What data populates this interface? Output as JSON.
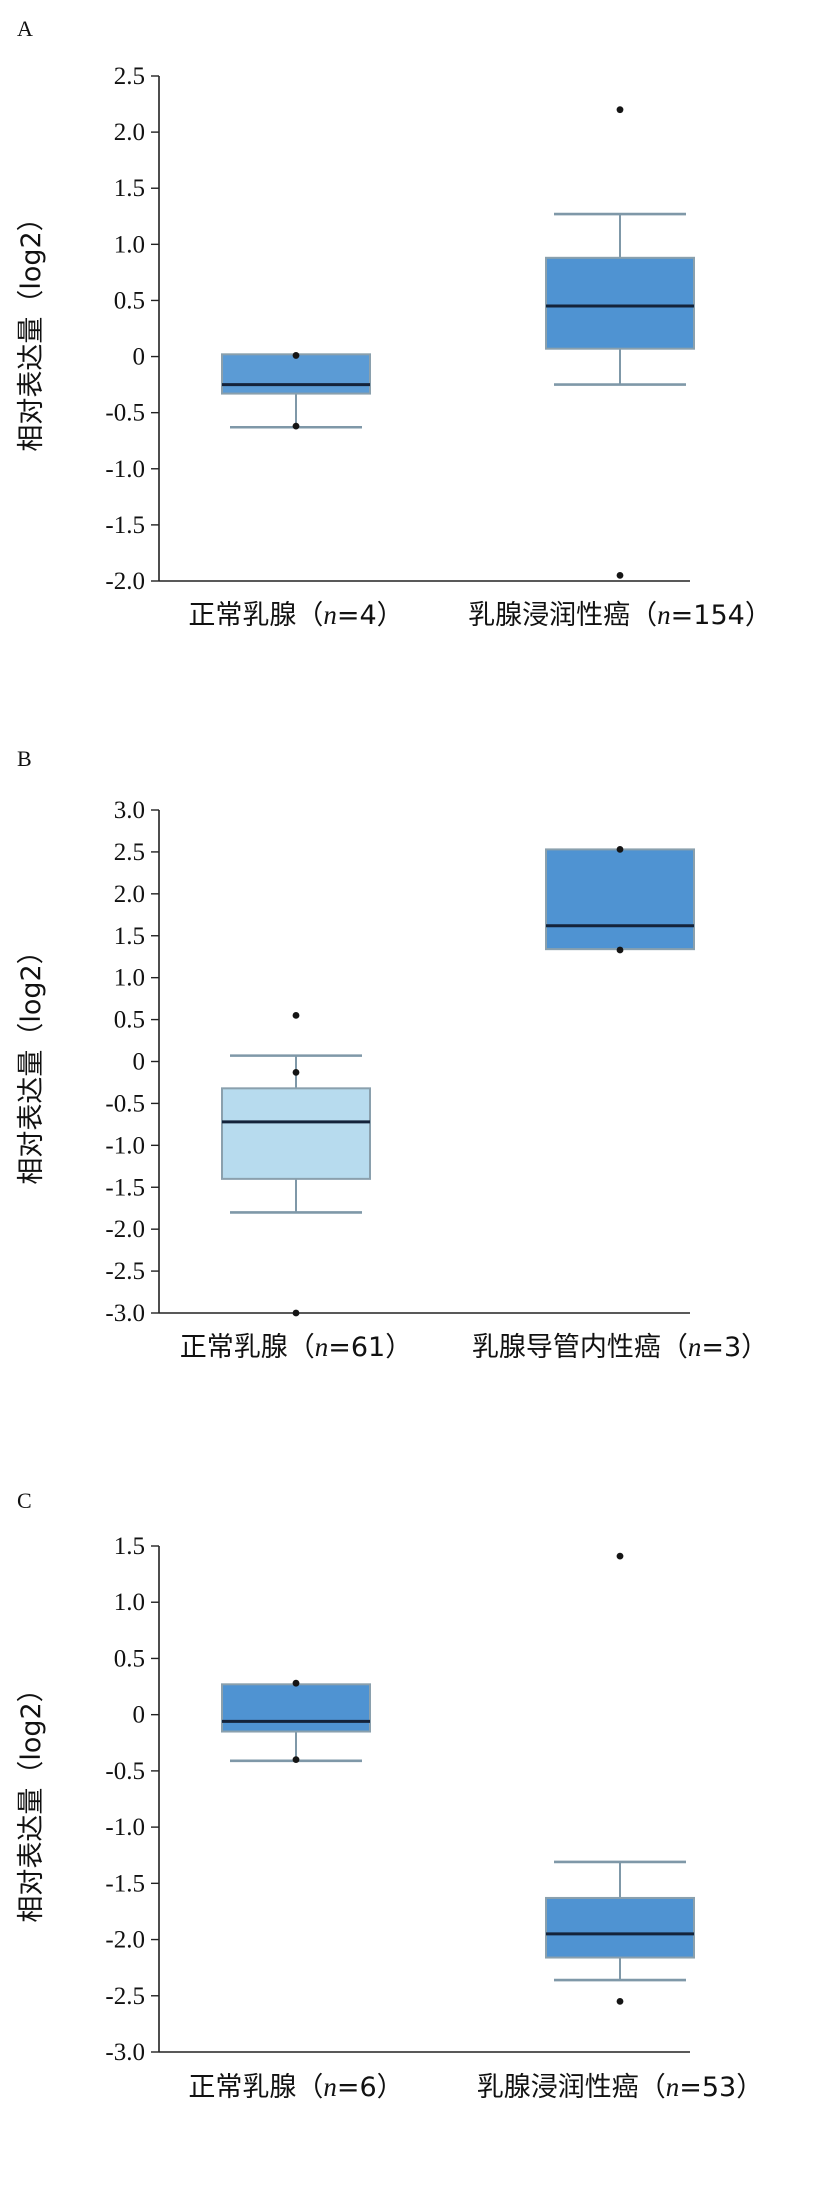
{
  "chart_data": [
    {
      "type": "box",
      "panel_label": "A",
      "ylabel": "相对表达量（log2）",
      "ylim": [
        -2.0,
        2.5
      ],
      "yticks": [
        2.5,
        2.0,
        1.5,
        1.0,
        0.5,
        0,
        -0.5,
        -1.0,
        -1.5,
        -2.0
      ],
      "ytick_labels": [
        "2.5",
        "2.0",
        "1.5",
        "1.0",
        "0.5",
        "0",
        "-0.5",
        "-1.0",
        "-1.5",
        "-2.0"
      ],
      "boxes": [
        {
          "label": "正常乳腺",
          "n_prefix": "（",
          "n_var": "n",
          "n_suffix": "=4）",
          "whisker_low": -0.63,
          "q1": -0.33,
          "median": -0.25,
          "q3": 0.02,
          "whisker_high": null,
          "outliers": [
            0.01,
            -0.62
          ],
          "color": "#5b9bd5"
        },
        {
          "label": "乳腺浸润性癌",
          "n_prefix": "（",
          "n_var": "n",
          "n_suffix": "=154）",
          "whisker_low": -0.25,
          "q1": 0.07,
          "median": 0.45,
          "q3": 0.88,
          "whisker_high": 1.27,
          "outliers": [
            2.2,
            -1.95
          ],
          "color": "#4f93d2"
        }
      ]
    },
    {
      "type": "box",
      "panel_label": "B",
      "ylabel": "相对表达量（log2）",
      "ylim": [
        -3.0,
        3.0
      ],
      "yticks": [
        3.0,
        2.5,
        2.0,
        1.5,
        1.0,
        0.5,
        0,
        -0.5,
        -1.0,
        -1.5,
        -2.0,
        -2.5,
        -3.0
      ],
      "ytick_labels": [
        "3.0",
        "2.5",
        "2.0",
        "1.5",
        "1.0",
        "0.5",
        "0",
        "-0.5",
        "-1.0",
        "-1.5",
        "-2.0",
        "-2.5",
        "-3.0"
      ],
      "boxes": [
        {
          "label": "正常乳腺",
          "n_prefix": "（",
          "n_var": "n",
          "n_suffix": "=61）",
          "whisker_low": -1.8,
          "q1": -1.4,
          "median": -0.72,
          "q3": -0.32,
          "whisker_high": 0.07,
          "outliers": [
            0.55,
            -0.13,
            -3.0
          ],
          "color": "#b7dbee"
        },
        {
          "label": "乳腺导管内性癌",
          "n_prefix": "（",
          "n_var": "n",
          "n_suffix": "=3）",
          "whisker_low": null,
          "q1": 1.34,
          "median": 1.62,
          "q3": 2.53,
          "whisker_high": null,
          "outliers": [
            2.53,
            1.33
          ],
          "color": "#4f93d2"
        }
      ]
    },
    {
      "type": "box",
      "panel_label": "C",
      "ylabel": "相对表达量（log2）",
      "ylim": [
        -3.0,
        1.5
      ],
      "yticks": [
        1.5,
        1.0,
        0.5,
        0,
        -0.5,
        -1.0,
        -1.5,
        -2.0,
        -2.5,
        -3.0
      ],
      "ytick_labels": [
        "1.5",
        "1.0",
        "0.5",
        "0",
        "-0.5",
        "-1.0",
        "-1.5",
        "-2.0",
        "-2.5",
        "-3.0"
      ],
      "boxes": [
        {
          "label": "正常乳腺",
          "n_prefix": "（",
          "n_var": "n",
          "n_suffix": "=6）",
          "whisker_low": -0.41,
          "q1": -0.15,
          "median": -0.06,
          "q3": 0.27,
          "whisker_high": null,
          "outliers": [
            0.28,
            -0.4
          ],
          "color": "#4f93d2"
        },
        {
          "label": "乳腺浸润性癌",
          "n_prefix": "（",
          "n_var": "n",
          "n_suffix": "=53）",
          "whisker_low": -2.36,
          "q1": -2.16,
          "median": -1.95,
          "q3": -1.63,
          "whisker_high": -1.31,
          "outliers": [
            1.41,
            -2.55
          ],
          "color": "#4f93d2"
        }
      ]
    }
  ]
}
